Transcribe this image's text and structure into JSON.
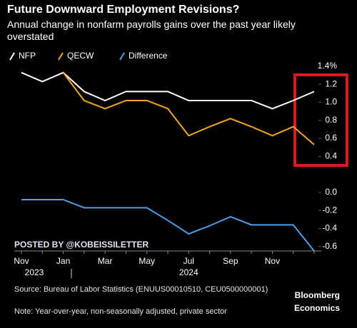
{
  "chart_data": {
    "type": "line",
    "title": "Future Downward Employment Revisions?",
    "subtitle": "Annual change in nonfarm payrolls gains over the past year likely overstated",
    "categories": [
      "Nov",
      null,
      "Jan",
      null,
      "Mar",
      null,
      "May",
      null,
      "Jul",
      null,
      "Sep",
      null,
      "Nov",
      null,
      null
    ],
    "year_labels": [
      "2023",
      "2024"
    ],
    "series": [
      {
        "name": "NFP",
        "color": "#ffffff",
        "values": [
          1.33,
          1.23,
          1.33,
          1.12,
          1.02,
          1.12,
          1.12,
          1.12,
          1.02,
          1.02,
          1.02,
          1.02,
          0.93,
          1.02,
          1.12
        ]
      },
      {
        "name": "QECW",
        "color": "#f5a623",
        "values": [
          null,
          null,
          1.33,
          1.02,
          0.93,
          1.02,
          1.02,
          0.93,
          0.63,
          0.73,
          0.82,
          0.73,
          0.63,
          0.73,
          0.53
        ]
      },
      {
        "name": "Difference",
        "color": "#4a9fe8",
        "values": [
          -0.08,
          -0.08,
          -0.08,
          -0.17,
          -0.17,
          -0.17,
          -0.17,
          -0.31,
          -0.46,
          -0.37,
          -0.27,
          -0.36,
          -0.36,
          -0.36,
          -0.65
        ]
      }
    ],
    "ylim": [
      -0.65,
      1.45
    ],
    "yticks": [
      {
        "value": 1.4,
        "label": "1.4%"
      },
      1.2,
      {
        "value": 1,
        "label": "1.0"
      },
      0.8,
      0.6,
      0.4,
      {
        "value": 0,
        "label": "0.0"
      },
      -0.2,
      -0.4,
      -0.6
    ],
    "grid": false,
    "watermark": "POSTED BY @KOBEISSILETTER",
    "source": "Source: Bureau of Labor Statistics (ENUUS00010510, CEU0500000001)",
    "note": "Note: Year-over-year, non-seasonally adjusted, private sector",
    "brand": [
      "Bloomberg",
      "Economics"
    ]
  }
}
